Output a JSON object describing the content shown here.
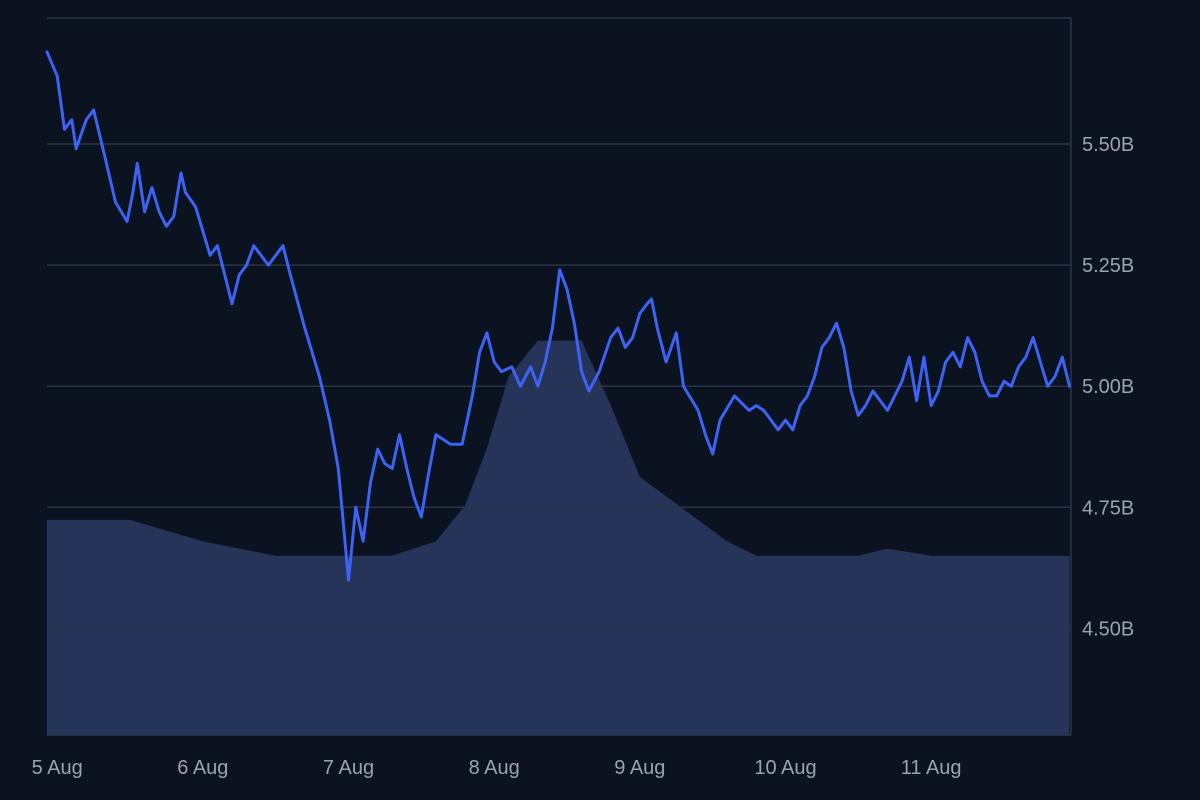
{
  "chart_data": {
    "type": "line",
    "title": "",
    "xlabel": "",
    "ylabel": "",
    "x_ticks": [
      "5 Aug",
      "6 Aug",
      "7 Aug",
      "8 Aug",
      "9 Aug",
      "10 Aug",
      "11 Aug"
    ],
    "y_ticks": [
      "5.50B",
      "5.25B",
      "5.00B",
      "4.75B",
      "4.50B"
    ],
    "y_tick_values": [
      5.5,
      5.25,
      5.0,
      4.75,
      4.5
    ],
    "ylim": [
      4.28,
      5.76
    ],
    "x_unit": "days since 5 Aug 00:00",
    "xlim": [
      -0.07,
      6.96
    ],
    "grid": true,
    "legend": "none",
    "colors": {
      "background": "#0b1220",
      "line": "#3d63f5",
      "volume": "#27345a",
      "grid": "#2a3446",
      "axis_text": "#9aa3b2"
    },
    "series": [
      {
        "name": "",
        "x": [
          -0.07,
          0.0,
          0.05,
          0.1,
          0.13,
          0.2,
          0.25,
          0.33,
          0.4,
          0.48,
          0.52,
          0.55,
          0.6,
          0.65,
          0.7,
          0.75,
          0.8,
          0.85,
          0.88,
          0.95,
          1.0,
          1.05,
          1.1,
          1.15,
          1.2,
          1.25,
          1.3,
          1.35,
          1.45,
          1.55,
          1.6,
          1.7,
          1.75,
          1.8,
          1.87,
          1.93,
          2.0,
          2.05,
          2.1,
          2.15,
          2.2,
          2.25,
          2.3,
          2.35,
          2.4,
          2.45,
          2.5,
          2.55,
          2.6,
          2.7,
          2.78,
          2.85,
          2.9,
          2.95,
          3.0,
          3.05,
          3.12,
          3.18,
          3.25,
          3.3,
          3.35,
          3.4,
          3.45,
          3.5,
          3.55,
          3.6,
          3.65,
          3.72,
          3.8,
          3.85,
          3.9,
          3.95,
          4.0,
          4.05,
          4.08,
          4.12,
          4.18,
          4.25,
          4.3,
          4.4,
          4.45,
          4.5,
          4.55,
          4.65,
          4.75,
          4.8,
          4.85,
          4.95,
          5.0,
          5.05,
          5.1,
          5.15,
          5.2,
          5.25,
          5.3,
          5.35,
          5.4,
          5.45,
          5.5,
          5.55,
          5.6,
          5.7,
          5.75,
          5.8,
          5.85,
          5.9,
          5.95,
          6.0,
          6.05,
          6.1,
          6.15,
          6.2,
          6.25,
          6.3,
          6.35,
          6.4,
          6.45,
          6.5,
          6.55,
          6.6,
          6.65,
          6.7,
          6.75,
          6.8,
          6.85,
          6.9,
          6.95
        ],
        "values": [
          5.69,
          5.64,
          5.53,
          5.55,
          5.49,
          5.55,
          5.57,
          5.47,
          5.38,
          5.34,
          5.4,
          5.46,
          5.36,
          5.41,
          5.36,
          5.33,
          5.35,
          5.44,
          5.4,
          5.37,
          5.32,
          5.27,
          5.29,
          5.23,
          5.17,
          5.23,
          5.25,
          5.29,
          5.25,
          5.29,
          5.23,
          5.12,
          5.07,
          5.02,
          4.93,
          4.83,
          4.6,
          4.75,
          4.68,
          4.8,
          4.87,
          4.84,
          4.83,
          4.9,
          4.83,
          4.77,
          4.73,
          4.82,
          4.9,
          4.88,
          4.88,
          4.98,
          5.07,
          5.11,
          5.05,
          5.03,
          5.04,
          5.0,
          5.04,
          5.0,
          5.05,
          5.12,
          5.24,
          5.2,
          5.13,
          5.03,
          4.99,
          5.03,
          5.1,
          5.12,
          5.08,
          5.1,
          5.15,
          5.17,
          5.18,
          5.12,
          5.05,
          5.11,
          5.0,
          4.95,
          4.9,
          4.86,
          4.93,
          4.98,
          4.95,
          4.96,
          4.95,
          4.91,
          4.93,
          4.91,
          4.96,
          4.98,
          5.02,
          5.08,
          5.1,
          5.13,
          5.08,
          4.99,
          4.94,
          4.96,
          4.99,
          4.95,
          4.98,
          5.01,
          5.06,
          4.97,
          5.06,
          4.96,
          4.99,
          5.05,
          5.07,
          5.04,
          5.1,
          5.07,
          5.01,
          4.98,
          4.98,
          5.01,
          5.0,
          5.04,
          5.06,
          5.1,
          5.05,
          5.0,
          5.02,
          5.06,
          5.0
        ]
      }
    ],
    "volume": {
      "x": [
        -0.07,
        0.0,
        0.5,
        1.0,
        1.5,
        2.0,
        2.3,
        2.6,
        2.8,
        2.95,
        3.1,
        3.3,
        3.6,
        3.8,
        4.0,
        4.2,
        4.4,
        4.6,
        4.8,
        5.0,
        5.2,
        5.5,
        5.7,
        6.0,
        6.3,
        6.5,
        6.7,
        6.95
      ],
      "values": [
        0.3,
        0.3,
        0.3,
        0.27,
        0.25,
        0.25,
        0.25,
        0.27,
        0.32,
        0.4,
        0.5,
        0.55,
        0.55,
        0.46,
        0.36,
        0.33,
        0.3,
        0.27,
        0.25,
        0.25,
        0.25,
        0.25,
        0.26,
        0.25,
        0.25,
        0.25,
        0.25,
        0.25
      ]
    }
  }
}
